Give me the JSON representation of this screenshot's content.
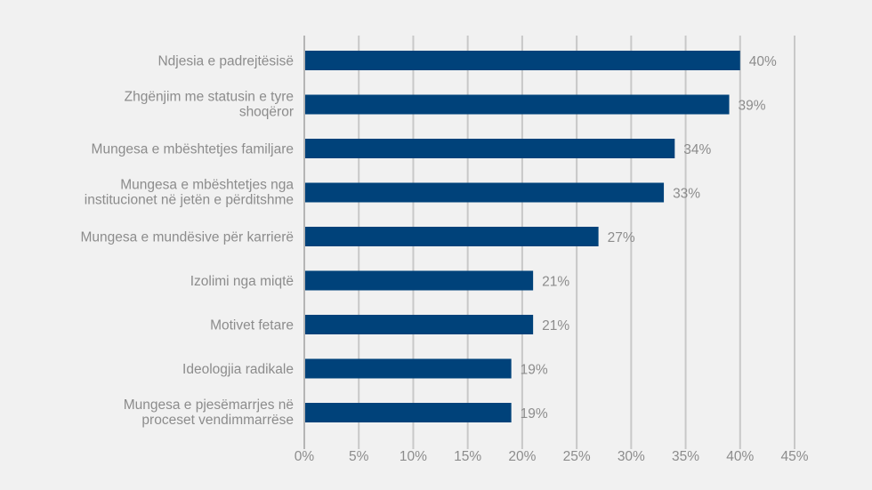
{
  "chart_data": {
    "type": "bar",
    "orientation": "horizontal",
    "categories": [
      [
        "Ndjesia e padrejtësisë"
      ],
      [
        "Zhgënjim me statusin e tyre",
        "shoqëror"
      ],
      [
        "Mungesa e mbështetjes familjare"
      ],
      [
        "Mungesa e mbështetjes nga",
        "institucionet në jetën e përditshme"
      ],
      [
        "Mungesa e mundësive për karrierë"
      ],
      [
        "Izolimi nga miqtë"
      ],
      [
        "Motivet fetare"
      ],
      [
        "Ideologjia radikale"
      ],
      [
        "Mungesa e pjesëmarrjes në",
        "proceset vendimmarrëse"
      ]
    ],
    "values": [
      40,
      39,
      34,
      33,
      27,
      21,
      21,
      19,
      19
    ],
    "data_labels": [
      "40%",
      "39%",
      "34%",
      "33%",
      "27%",
      "21%",
      "21%",
      "19%",
      "19%"
    ],
    "xlim": [
      0,
      45
    ],
    "xticks": [
      0,
      5,
      10,
      15,
      20,
      25,
      30,
      35,
      40,
      45
    ],
    "xtick_labels": [
      "0%",
      "5%",
      "10%",
      "15%",
      "20%",
      "25%",
      "30%",
      "35%",
      "40%",
      "45%"
    ],
    "grid": "vertical",
    "title": "",
    "xlabel": "",
    "ylabel": "",
    "colors": {
      "bar": "#00427a",
      "grid": "#c8c8c8",
      "text": "#8c8c8c",
      "background": "#f1f1f1"
    }
  }
}
